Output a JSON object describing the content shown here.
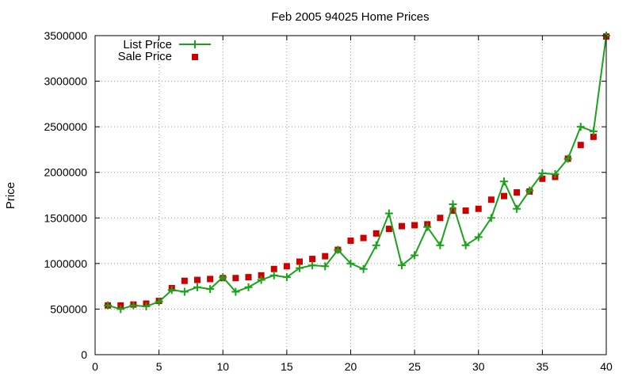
{
  "chart_data": {
    "type": "line",
    "title": "Feb 2005 94025 Home Prices",
    "xlabel": "",
    "ylabel": "Price",
    "xlim": [
      0,
      40
    ],
    "ylim": [
      0,
      3500000
    ],
    "x_ticks": [
      0,
      5,
      10,
      15,
      20,
      25,
      30,
      35,
      40
    ],
    "y_ticks": [
      0,
      500000,
      1000000,
      1500000,
      2000000,
      2500000,
      3000000,
      3500000
    ],
    "grid": true,
    "legend_position": "top-left",
    "x": [
      1,
      2,
      3,
      4,
      5,
      6,
      7,
      8,
      9,
      10,
      11,
      12,
      13,
      14,
      15,
      16,
      17,
      18,
      19,
      20,
      21,
      22,
      23,
      24,
      25,
      26,
      27,
      28,
      29,
      30,
      31,
      32,
      33,
      34,
      35,
      36,
      37,
      38,
      39,
      40
    ],
    "series": [
      {
        "name": "List Price",
        "style": "linespoints",
        "color": "#1aa31a",
        "marker": "plus",
        "values": [
          540000,
          500000,
          540000,
          530000,
          580000,
          710000,
          690000,
          740000,
          720000,
          850000,
          690000,
          740000,
          820000,
          870000,
          850000,
          950000,
          980000,
          970000,
          1150000,
          1000000,
          940000,
          1200000,
          1550000,
          980000,
          1090000,
          1400000,
          1200000,
          1650000,
          1200000,
          1290000,
          1500000,
          1900000,
          1600000,
          1800000,
          1990000,
          1980000,
          2150000,
          2500000,
          2450000,
          3500000
        ]
      },
      {
        "name": "Sale Price",
        "style": "points",
        "color": "#cc0000",
        "marker": "square",
        "values": [
          540000,
          540000,
          550000,
          560000,
          590000,
          730000,
          810000,
          820000,
          830000,
          840000,
          840000,
          850000,
          870000,
          940000,
          970000,
          1020000,
          1050000,
          1080000,
          1150000,
          1250000,
          1280000,
          1330000,
          1380000,
          1410000,
          1420000,
          1430000,
          1500000,
          1580000,
          1580000,
          1600000,
          1700000,
          1740000,
          1780000,
          1790000,
          1930000,
          1950000,
          2150000,
          2300000,
          2390000,
          3490000
        ]
      }
    ]
  }
}
